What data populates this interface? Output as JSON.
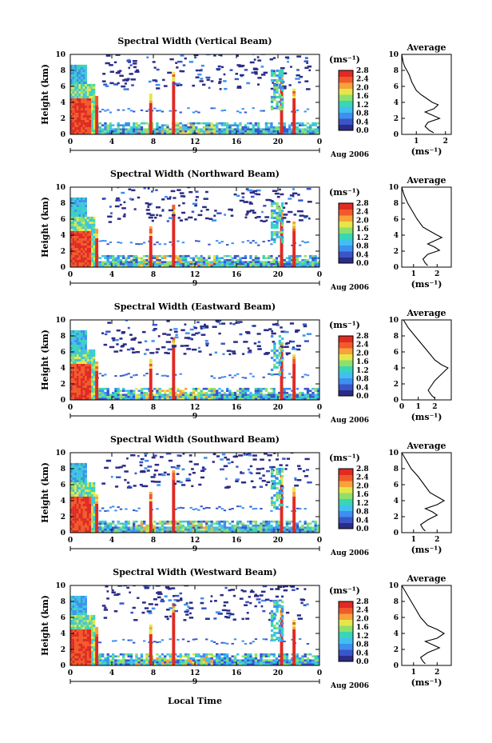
{
  "figure": {
    "xlabel": "Local Time",
    "date_label": "Aug 2006",
    "day_label": "9",
    "colorbar_unit": "(ms⁻¹)",
    "colorbar_ticks": [
      "0.0",
      "0.4",
      "0.8",
      "1.2",
      "1.6",
      "2.0",
      "2.4",
      "2.8"
    ],
    "profile_title": "Average",
    "profile_xlabel": "(ms⁻¹)",
    "colorbar_colors": [
      "#2b2c86",
      "#3a55c8",
      "#3d8ff0",
      "#3fc0f0",
      "#39d6b4",
      "#8ee06c",
      "#e6e64a",
      "#f7a23a",
      "#f15a2a",
      "#e02a22"
    ]
  },
  "chart_data": [
    {
      "type": "heatmap",
      "title": "Spectral Width (Vertical Beam)",
      "ylabel": "Height (km)",
      "x_ticks": [
        "0",
        "4",
        "8",
        "12",
        "16",
        "20",
        "0"
      ],
      "y_ticks": [
        "0",
        "2",
        "4",
        "6",
        "8",
        "10"
      ],
      "xlim": [
        0,
        24
      ],
      "ylim": [
        0,
        10
      ],
      "profile": {
        "type": "line",
        "x_ticks": [
          "1",
          "2"
        ],
        "xlim": [
          0.5,
          2.2
        ],
        "points": [
          [
            0.5,
            10
          ],
          [
            0.55,
            9
          ],
          [
            0.6,
            8.5
          ],
          [
            0.75,
            7.5
          ],
          [
            0.85,
            6.5
          ],
          [
            1.0,
            5.5
          ],
          [
            1.15,
            5
          ],
          [
            1.35,
            4.5
          ],
          [
            1.55,
            4
          ],
          [
            1.75,
            3.7
          ],
          [
            1.6,
            3.2
          ],
          [
            1.3,
            2.8
          ],
          [
            1.55,
            2.4
          ],
          [
            1.8,
            2
          ],
          [
            1.4,
            1.5
          ],
          [
            1.3,
            1
          ],
          [
            1.45,
            0.5
          ],
          [
            1.6,
            0.2
          ]
        ]
      }
    },
    {
      "type": "heatmap",
      "title": "Spectral Width (Northward Beam)",
      "ylabel": "Height (km)",
      "x_ticks": [
        "0",
        "4",
        "8",
        "12",
        "16",
        "20",
        "0"
      ],
      "y_ticks": [
        "0",
        "2",
        "4",
        "6",
        "8",
        "10"
      ],
      "xlim": [
        0,
        24
      ],
      "ylim": [
        0,
        10
      ],
      "profile": {
        "type": "line",
        "x_ticks": [
          "1",
          "2"
        ],
        "xlim": [
          0.5,
          2.6
        ],
        "points": [
          [
            0.5,
            10
          ],
          [
            0.6,
            9
          ],
          [
            0.75,
            8
          ],
          [
            0.95,
            7
          ],
          [
            1.15,
            6
          ],
          [
            1.4,
            5
          ],
          [
            1.7,
            4.5
          ],
          [
            2.0,
            4
          ],
          [
            2.2,
            3.7
          ],
          [
            1.9,
            3.3
          ],
          [
            1.6,
            2.9
          ],
          [
            1.9,
            2.5
          ],
          [
            2.1,
            2.1
          ],
          [
            1.6,
            1.6
          ],
          [
            1.4,
            1
          ],
          [
            1.5,
            0.5
          ],
          [
            1.6,
            0.2
          ]
        ]
      }
    },
    {
      "type": "heatmap",
      "title": "Spectral Width (Eastward Beam)",
      "ylabel": "Height (km)",
      "x_ticks": [
        "0",
        "4",
        "8",
        "12",
        "16",
        "20",
        "0"
      ],
      "y_ticks": [
        "0",
        "2",
        "4",
        "6",
        "8",
        "10"
      ],
      "xlim": [
        0,
        24
      ],
      "ylim": [
        0,
        10
      ],
      "profile": {
        "type": "line",
        "x_ticks": [
          "0",
          "1",
          "2"
        ],
        "xlim": [
          0,
          3
        ],
        "points": [
          [
            0.1,
            10
          ],
          [
            0.4,
            9
          ],
          [
            0.8,
            8
          ],
          [
            1.2,
            7
          ],
          [
            1.6,
            6
          ],
          [
            2.0,
            5
          ],
          [
            2.4,
            4.4
          ],
          [
            2.8,
            4
          ],
          [
            2.6,
            3.6
          ],
          [
            2.3,
            3
          ],
          [
            2.0,
            2.4
          ],
          [
            1.8,
            1.8
          ],
          [
            1.6,
            1.2
          ],
          [
            1.8,
            0.6
          ],
          [
            2.0,
            0.2
          ]
        ]
      }
    },
    {
      "type": "heatmap",
      "title": "Spectral Width (Southward Beam)",
      "ylabel": "Height (km)",
      "x_ticks": [
        "0",
        "4",
        "8",
        "12",
        "16",
        "20",
        "0"
      ],
      "y_ticks": [
        "0",
        "2",
        "4",
        "6",
        "8",
        "10"
      ],
      "xlim": [
        0,
        24
      ],
      "ylim": [
        0,
        10
      ],
      "profile": {
        "type": "line",
        "x_ticks": [
          "1",
          "2"
        ],
        "xlim": [
          0.5,
          2.6
        ],
        "points": [
          [
            0.5,
            10
          ],
          [
            0.7,
            9
          ],
          [
            0.9,
            8
          ],
          [
            1.2,
            7
          ],
          [
            1.45,
            6
          ],
          [
            1.7,
            5
          ],
          [
            2.0,
            4.5
          ],
          [
            2.3,
            4
          ],
          [
            2.0,
            3.5
          ],
          [
            1.5,
            3
          ],
          [
            1.8,
            2.6
          ],
          [
            2.0,
            2.2
          ],
          [
            1.6,
            1.6
          ],
          [
            1.3,
            1
          ],
          [
            1.4,
            0.5
          ],
          [
            1.5,
            0.2
          ]
        ]
      }
    },
    {
      "type": "heatmap",
      "title": "Spectral Width (Westward Beam)",
      "ylabel": "Height (km)",
      "x_ticks": [
        "0",
        "4",
        "8",
        "12",
        "16",
        "20",
        "0"
      ],
      "y_ticks": [
        "0",
        "2",
        "4",
        "6",
        "8",
        "10"
      ],
      "xlim": [
        0,
        24
      ],
      "ylim": [
        0,
        10
      ],
      "profile": {
        "type": "line",
        "x_ticks": [
          "1",
          "2"
        ],
        "xlim": [
          0.5,
          2.6
        ],
        "points": [
          [
            0.5,
            10
          ],
          [
            0.7,
            9
          ],
          [
            0.9,
            8
          ],
          [
            1.1,
            7
          ],
          [
            1.3,
            6
          ],
          [
            1.6,
            5
          ],
          [
            2.0,
            4.5
          ],
          [
            2.3,
            4
          ],
          [
            2.0,
            3.4
          ],
          [
            1.5,
            3
          ],
          [
            1.8,
            2.6
          ],
          [
            2.1,
            2.2
          ],
          [
            1.6,
            1.6
          ],
          [
            1.3,
            1
          ],
          [
            1.4,
            0.5
          ],
          [
            1.5,
            0.2
          ]
        ]
      }
    }
  ]
}
